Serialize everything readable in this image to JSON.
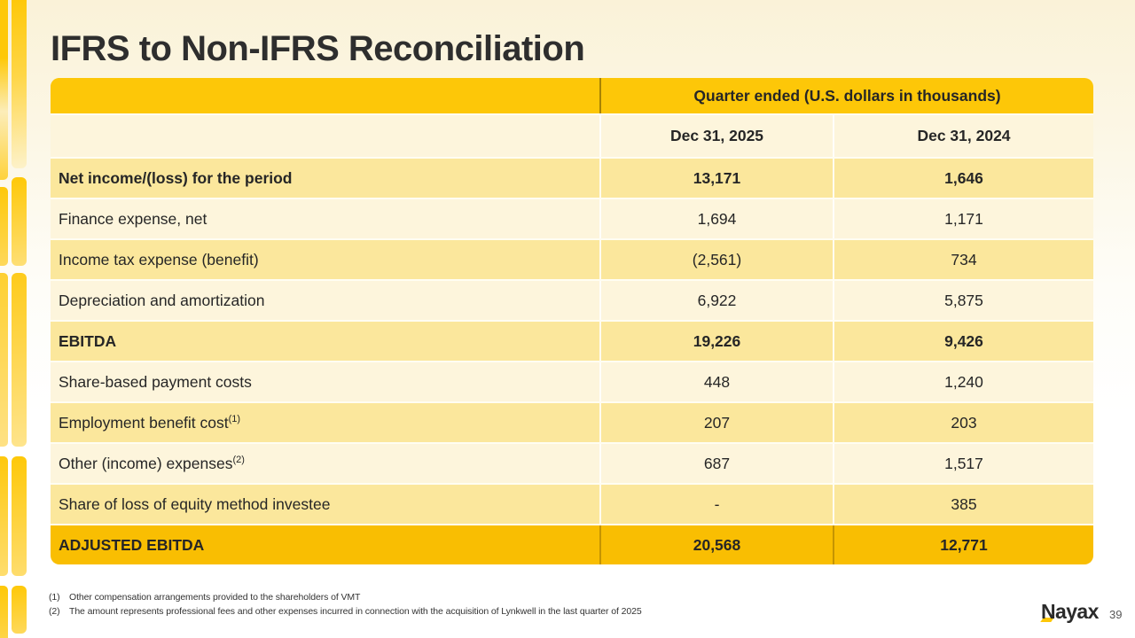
{
  "slide": {
    "title": "IFRS to Non-IFRS Reconciliation",
    "page_number": "39",
    "logo_text": "Nayax"
  },
  "table": {
    "header": "Quarter ended (U.S. dollars in thousands)",
    "columns": [
      "Dec 31, 2025",
      "Dec 31, 2024"
    ],
    "rows": [
      {
        "label": "Net income/(loss) for the period",
        "sup": "",
        "v2025": "13,171",
        "v2024": "1,646"
      },
      {
        "label": "Finance expense, net",
        "sup": "",
        "v2025": "1,694",
        "v2024": "1,171"
      },
      {
        "label": "Income tax expense (benefit)",
        "sup": "",
        "v2025": "(2,561)",
        "v2024": "734"
      },
      {
        "label": "Depreciation and amortization",
        "sup": "",
        "v2025": "6,922",
        "v2024": "5,875"
      },
      {
        "label": "EBITDA",
        "sup": "",
        "v2025": "19,226",
        "v2024": "9,426"
      },
      {
        "label": "Share-based payment costs",
        "sup": "",
        "v2025": "448",
        "v2024": "1,240"
      },
      {
        "label": "Employment benefit cost",
        "sup": "(1)",
        "v2025": "207",
        "v2024": "203"
      },
      {
        "label": "Other (income) expenses",
        "sup": "(2)",
        "v2025": "687",
        "v2024": "1,517"
      },
      {
        "label": "Share of loss of equity method investee",
        "sup": "",
        "v2025": "-",
        "v2024": "385"
      },
      {
        "label": "ADJUSTED EBITDA",
        "sup": "",
        "v2025": "20,568",
        "v2024": "12,771"
      }
    ]
  },
  "footnotes": [
    {
      "marker": "(1)",
      "text": "Other compensation arrangements provided to the shareholders of VMT"
    },
    {
      "marker": "(2)",
      "text": "The amount represents professional fees and other expenses incurred in connection with the acquisition of Lynkwell in the last quarter of 2025"
    }
  ],
  "colors": {
    "gold": "#FDC708",
    "row_yellow": "#FBE79C",
    "row_cream": "#FDF5DC",
    "total_gold": "#F9BE02",
    "text": "#262626"
  }
}
